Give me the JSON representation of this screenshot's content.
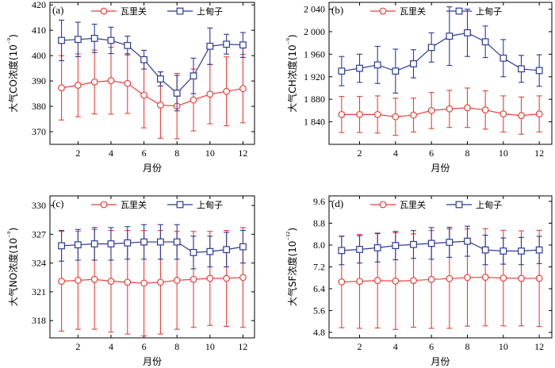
{
  "colors": {
    "series_wali": "#e8403a",
    "series_shangdianzi": "#2d3a96"
  },
  "chart_data": [
    {
      "type": "line",
      "panel_label": "(a)",
      "xlabel": "月份",
      "ylabel_parts": [
        "大气CO",
        "浓度(10",
        "⁻⁹",
        ")"
      ],
      "xlim": [
        0.3,
        12.7
      ],
      "ylim": [
        365,
        421
      ],
      "xticks": [
        2,
        4,
        6,
        8,
        10,
        12
      ],
      "yticks": [
        370,
        380,
        390,
        400,
        410,
        420
      ],
      "ytick_labels": [
        "370",
        "380",
        "390",
        "400",
        "410",
        "420"
      ],
      "x": [
        1,
        2,
        3,
        4,
        5,
        6,
        7,
        8,
        9,
        10,
        11,
        12
      ],
      "series": [
        {
          "name": "瓦里关",
          "marker": "circle",
          "values": [
            387.3,
            388.3,
            389.6,
            390.1,
            389.0,
            384.4,
            380.5,
            380.1,
            382.5,
            384.8,
            385.9,
            387.0
          ],
          "err": [
            12.7,
            12.4,
            12.6,
            13.2,
            11.8,
            12.9,
            13.1,
            12.9,
            12.2,
            11.7,
            13.6,
            13.5
          ]
        },
        {
          "name": "上甸子",
          "marker": "square",
          "values": [
            406.0,
            406.4,
            406.8,
            406.0,
            404.0,
            398.4,
            390.8,
            385.2,
            392.0,
            403.7,
            404.5,
            404.2
          ],
          "err": [
            8.0,
            6.8,
            5.6,
            5.2,
            3.7,
            3.7,
            2.8,
            7.0,
            7.0,
            7.2,
            3.9,
            4.9
          ]
        }
      ]
    },
    {
      "type": "line",
      "panel_label": "(b)",
      "xlabel": "月份",
      "ylabel_parts": [
        "大气CH",
        "浓度(10",
        "⁻⁹",
        ")"
      ],
      "xlim": [
        0.3,
        12.7
      ],
      "ylim": [
        1800,
        2052
      ],
      "xticks": [
        2,
        4,
        6,
        8,
        10,
        12
      ],
      "yticks": [
        1840,
        1880,
        1920,
        1960,
        2000,
        2040
      ],
      "ytick_labels": [
        "1 840",
        "1 880",
        "1 920",
        "1 960",
        "2 000",
        "2 040"
      ],
      "x": [
        1,
        2,
        3,
        4,
        5,
        6,
        7,
        8,
        9,
        10,
        11,
        12
      ],
      "series": [
        {
          "name": "瓦里关",
          "marker": "circle",
          "values": [
            1853,
            1853,
            1853,
            1849,
            1852,
            1860,
            1863,
            1865,
            1861,
            1854,
            1851,
            1854
          ],
          "err": [
            32,
            32,
            33,
            33,
            30,
            32,
            33,
            35,
            34,
            32,
            33,
            32
          ]
        },
        {
          "name": "上甸子",
          "marker": "square",
          "values": [
            1930,
            1935,
            1941,
            1930,
            1943,
            1972,
            1992,
            1998,
            1982,
            1953,
            1934,
            1931
          ],
          "err": [
            26,
            25,
            33,
            39,
            25,
            26,
            52,
            42,
            28,
            33,
            24,
            28
          ]
        }
      ]
    },
    {
      "type": "line",
      "panel_label": "(c)",
      "xlabel": "月份",
      "ylabel_parts": [
        "大气N",
        "O浓度(10",
        "⁻⁹",
        ")"
      ],
      "xlim": [
        0.3,
        12.7
      ],
      "ylim": [
        316.2,
        331.0
      ],
      "xticks": [
        2,
        4,
        6,
        8,
        10,
        12
      ],
      "yticks": [
        318,
        321,
        324,
        327,
        330
      ],
      "ytick_labels": [
        "318",
        "321",
        "324",
        "327",
        "330"
      ],
      "x": [
        1,
        2,
        3,
        4,
        5,
        6,
        7,
        8,
        9,
        10,
        11,
        12
      ],
      "series": [
        {
          "name": "瓦里关",
          "marker": "circle",
          "values": [
            322.1,
            322.2,
            322.3,
            322.1,
            322.0,
            321.9,
            322.0,
            322.2,
            322.3,
            322.4,
            322.4,
            322.5
          ],
          "err": [
            5.2,
            5.1,
            5.2,
            5.3,
            5.4,
            5.5,
            5.4,
            5.1,
            5.0,
            4.9,
            5.0,
            5.2
          ]
        },
        {
          "name": "上甸子",
          "marker": "square",
          "values": [
            325.8,
            325.9,
            326.0,
            326.0,
            326.1,
            326.2,
            326.2,
            326.2,
            325.1,
            325.2,
            325.4,
            325.7
          ],
          "err": [
            1.6,
            1.6,
            1.7,
            1.7,
            1.7,
            1.8,
            1.8,
            1.8,
            1.7,
            1.6,
            1.8,
            1.7
          ]
        }
      ]
    },
    {
      "type": "line",
      "panel_label": "(d)",
      "xlabel": "月份",
      "ylabel_parts": [
        "大气SF",
        "浓度(10",
        "⁻¹²",
        ")"
      ],
      "xlim": [
        0.3,
        12.7
      ],
      "ylim": [
        4.6,
        9.8
      ],
      "xticks": [
        2,
        4,
        6,
        8,
        10,
        12
      ],
      "yticks": [
        4.8,
        5.6,
        6.4,
        7.2,
        8.0,
        8.8,
        9.6
      ],
      "ytick_labels": [
        "4.8",
        "5.6",
        "6.4",
        "7.2",
        "8.0",
        "8.8",
        "9.6"
      ],
      "x": [
        1,
        2,
        3,
        4,
        5,
        6,
        7,
        8,
        9,
        10,
        11,
        12
      ],
      "series": [
        {
          "name": "瓦里关",
          "marker": "circle",
          "values": [
            6.65,
            6.67,
            6.7,
            6.68,
            6.7,
            6.74,
            6.77,
            6.81,
            6.82,
            6.79,
            6.78,
            6.78
          ],
          "err": [
            1.68,
            1.72,
            1.74,
            1.77,
            1.71,
            1.79,
            1.82,
            1.78,
            1.78,
            1.75,
            1.74,
            1.76
          ]
        },
        {
          "name": "上甸子",
          "marker": "square",
          "values": [
            7.8,
            7.84,
            7.9,
            7.98,
            8.02,
            8.06,
            8.1,
            8.14,
            7.82,
            7.78,
            7.78,
            7.82
          ],
          "err": [
            0.52,
            0.5,
            0.52,
            0.52,
            0.51,
            0.58,
            0.55,
            0.55,
            0.54,
            0.48,
            0.5,
            0.5
          ]
        }
      ]
    }
  ]
}
